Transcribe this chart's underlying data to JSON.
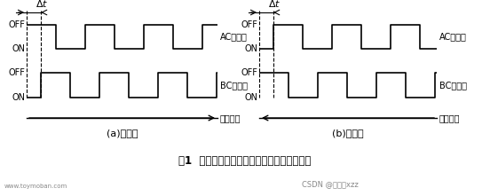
{
  "bg_color": "#ffffff",
  "signal_color": "#000000",
  "title": "图1  旋转编码器旋转方向及旋转脉冲数的识别",
  "subtitle_a": "(a)右旋转",
  "subtitle_b": "(b)左旋转",
  "label_ac": "AC端信号",
  "label_bc": "BC端信号",
  "label_off": "OFF",
  "label_on": "ON",
  "label_dir": "旋转方向",
  "label_delta": "Δt",
  "watermark1": "www.toymoban.com",
  "watermark2": "CSDN @努力的xzz",
  "panel_a_arrow_dir": "right",
  "panel_b_arrow_dir": "left",
  "note": "Panel (a): AC leads BC by delta_t. Panel (b): BC leads AC by delta_t."
}
